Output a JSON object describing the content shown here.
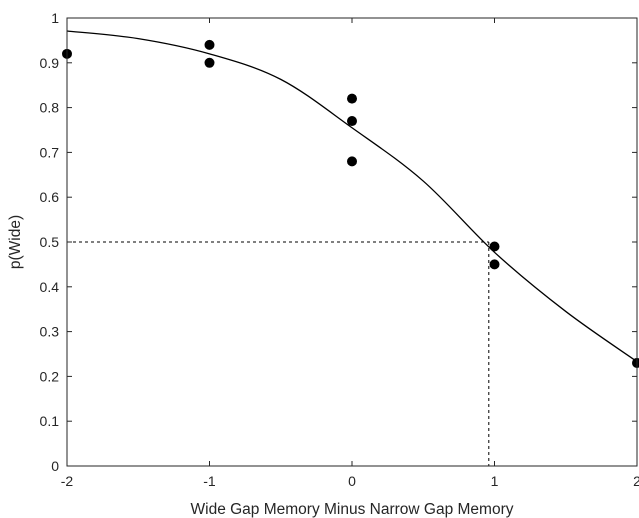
{
  "chart_data": {
    "type": "scatter",
    "xlabel": "Wide Gap Memory Minus Narrow Gap Memory",
    "ylabel": "p(Wide)",
    "xlim": [
      -2,
      2
    ],
    "ylim": [
      0,
      1
    ],
    "xticks": [
      "-2",
      "-1",
      "0",
      "1",
      "2"
    ],
    "yticks": [
      "0",
      "0.1",
      "0.2",
      "0.3",
      "0.4",
      "0.5",
      "0.6",
      "0.7",
      "0.8",
      "0.9",
      "1"
    ],
    "grid": false,
    "legend": "none",
    "points": [
      {
        "x": -2,
        "y": 0.92
      },
      {
        "x": -1,
        "y": 0.94
      },
      {
        "x": -1,
        "y": 0.9
      },
      {
        "x": 0,
        "y": 0.82
      },
      {
        "x": 0,
        "y": 0.77
      },
      {
        "x": 0,
        "y": 0.68
      },
      {
        "x": 1,
        "y": 0.49
      },
      {
        "x": 1,
        "y": 0.45
      },
      {
        "x": 2,
        "y": 0.23
      }
    ],
    "fit_curve": {
      "type": "logistic",
      "x": [
        -2.0,
        -1.5,
        -1.0,
        -0.5,
        0.0,
        0.5,
        1.0,
        1.5,
        2.0
      ],
      "y": [
        0.971,
        0.954,
        0.92,
        0.863,
        0.755,
        0.636,
        0.477,
        0.345,
        0.233
      ]
    },
    "reference_lines": {
      "y": 0.5,
      "x": 0.96
    },
    "colors": {
      "marker": "#000000",
      "curve": "#000000",
      "axis": "#262626"
    }
  }
}
